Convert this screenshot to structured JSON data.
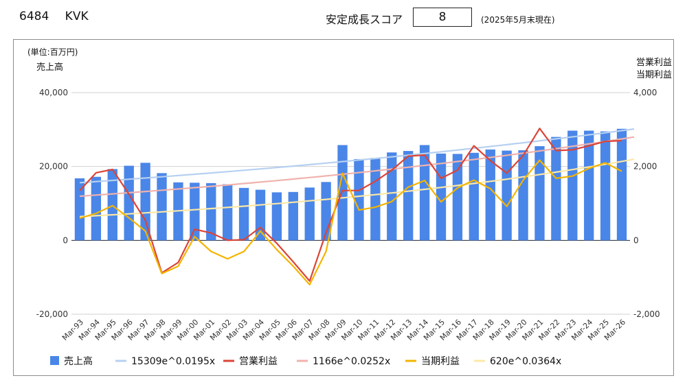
{
  "header": {
    "code": "6484",
    "name": "KVK",
    "score_label": "安定成長スコア",
    "score_value": "8",
    "as_of": "(2025年5月末現在)"
  },
  "chart_data": {
    "type": "bar+line",
    "unit_label": "(単位:百万円)",
    "left_axis_title": "売上高",
    "right_axis_title": [
      "営業利益",
      "当期利益"
    ],
    "left_axis": {
      "min": -20000,
      "max": 40000,
      "ticks": [
        40000,
        20000,
        0,
        -20000
      ],
      "tick_labels": [
        "40,000",
        "20,000",
        "0",
        "-20,000"
      ]
    },
    "right_axis": {
      "min": -2000,
      "max": 4000,
      "ticks": [
        4000,
        2000,
        0,
        -2000
      ],
      "tick_labels": [
        "4,000",
        "2,000",
        "0",
        "-2,000"
      ]
    },
    "categories": [
      "Mar-93",
      "Mar-94",
      "Mar-95",
      "Mar-96",
      "Mar-97",
      "Mar-98",
      "Mar-99",
      "Mar-00",
      "Mar-01",
      "Mar-02",
      "Mar-03",
      "Mar-04",
      "Mar-05",
      "Mar-06",
      "Mar-07",
      "Mar-08",
      "Mar-09",
      "Mar-10",
      "Mar-11",
      "Mar-12",
      "Mar-13",
      "Mar-14",
      "Mar-15",
      "Mar-16",
      "Mar-17",
      "Mar-18",
      "Mar-19",
      "Mar-20",
      "Mar-21",
      "Mar-22",
      "Mar-23",
      "Mar-24",
      "Mar-25",
      "Mar-26"
    ],
    "series": [
      {
        "name": "売上高",
        "type": "bar",
        "axis": "left",
        "color": "#4a86e8",
        "values": [
          16800,
          17200,
          19300,
          20200,
          21000,
          18200,
          15700,
          15600,
          15500,
          15200,
          14200,
          13700,
          13000,
          13100,
          14300,
          15800,
          25800,
          22000,
          22300,
          23800,
          24200,
          25800,
          23500,
          23400,
          23700,
          24600,
          24300,
          24400,
          25500,
          28000,
          29700,
          29700,
          29500,
          30200
        ]
      },
      {
        "name": "15309e^0.0195x",
        "type": "trend",
        "axis": "left",
        "color": "#b6d0f0",
        "a": 15309,
        "b": 0.0195
      },
      {
        "name": "営業利益",
        "type": "line",
        "axis": "right",
        "color": "#db4437",
        "values": [
          1350,
          1830,
          1920,
          1250,
          540,
          -880,
          -600,
          300,
          200,
          0,
          20,
          350,
          -80,
          -580,
          -1100,
          210,
          1350,
          1350,
          1600,
          1900,
          2280,
          2310,
          1680,
          1900,
          2560,
          2160,
          1820,
          2300,
          3030,
          2430,
          2450,
          2560,
          2680,
          2700
        ]
      },
      {
        "name": "1166e^0.0252x",
        "type": "trend",
        "axis": "right",
        "color": "#f0b2ad",
        "a": 1166,
        "b": 0.0252
      },
      {
        "name": "当期利益",
        "type": "line",
        "axis": "right",
        "color": "#f4b400",
        "values": [
          600,
          730,
          940,
          610,
          250,
          -900,
          -700,
          100,
          -300,
          -500,
          -300,
          250,
          -250,
          -700,
          -1200,
          -300,
          1820,
          820,
          900,
          1050,
          1440,
          1620,
          1040,
          1420,
          1630,
          1400,
          920,
          1630,
          2170,
          1680,
          1740,
          1950,
          2100,
          1870
        ]
      },
      {
        "name": "620e^0.0364x",
        "type": "trend",
        "axis": "right",
        "color": "#fce8a6",
        "a": 620,
        "b": 0.0364
      }
    ],
    "legend": "bottom",
    "grid": "horizontal"
  }
}
